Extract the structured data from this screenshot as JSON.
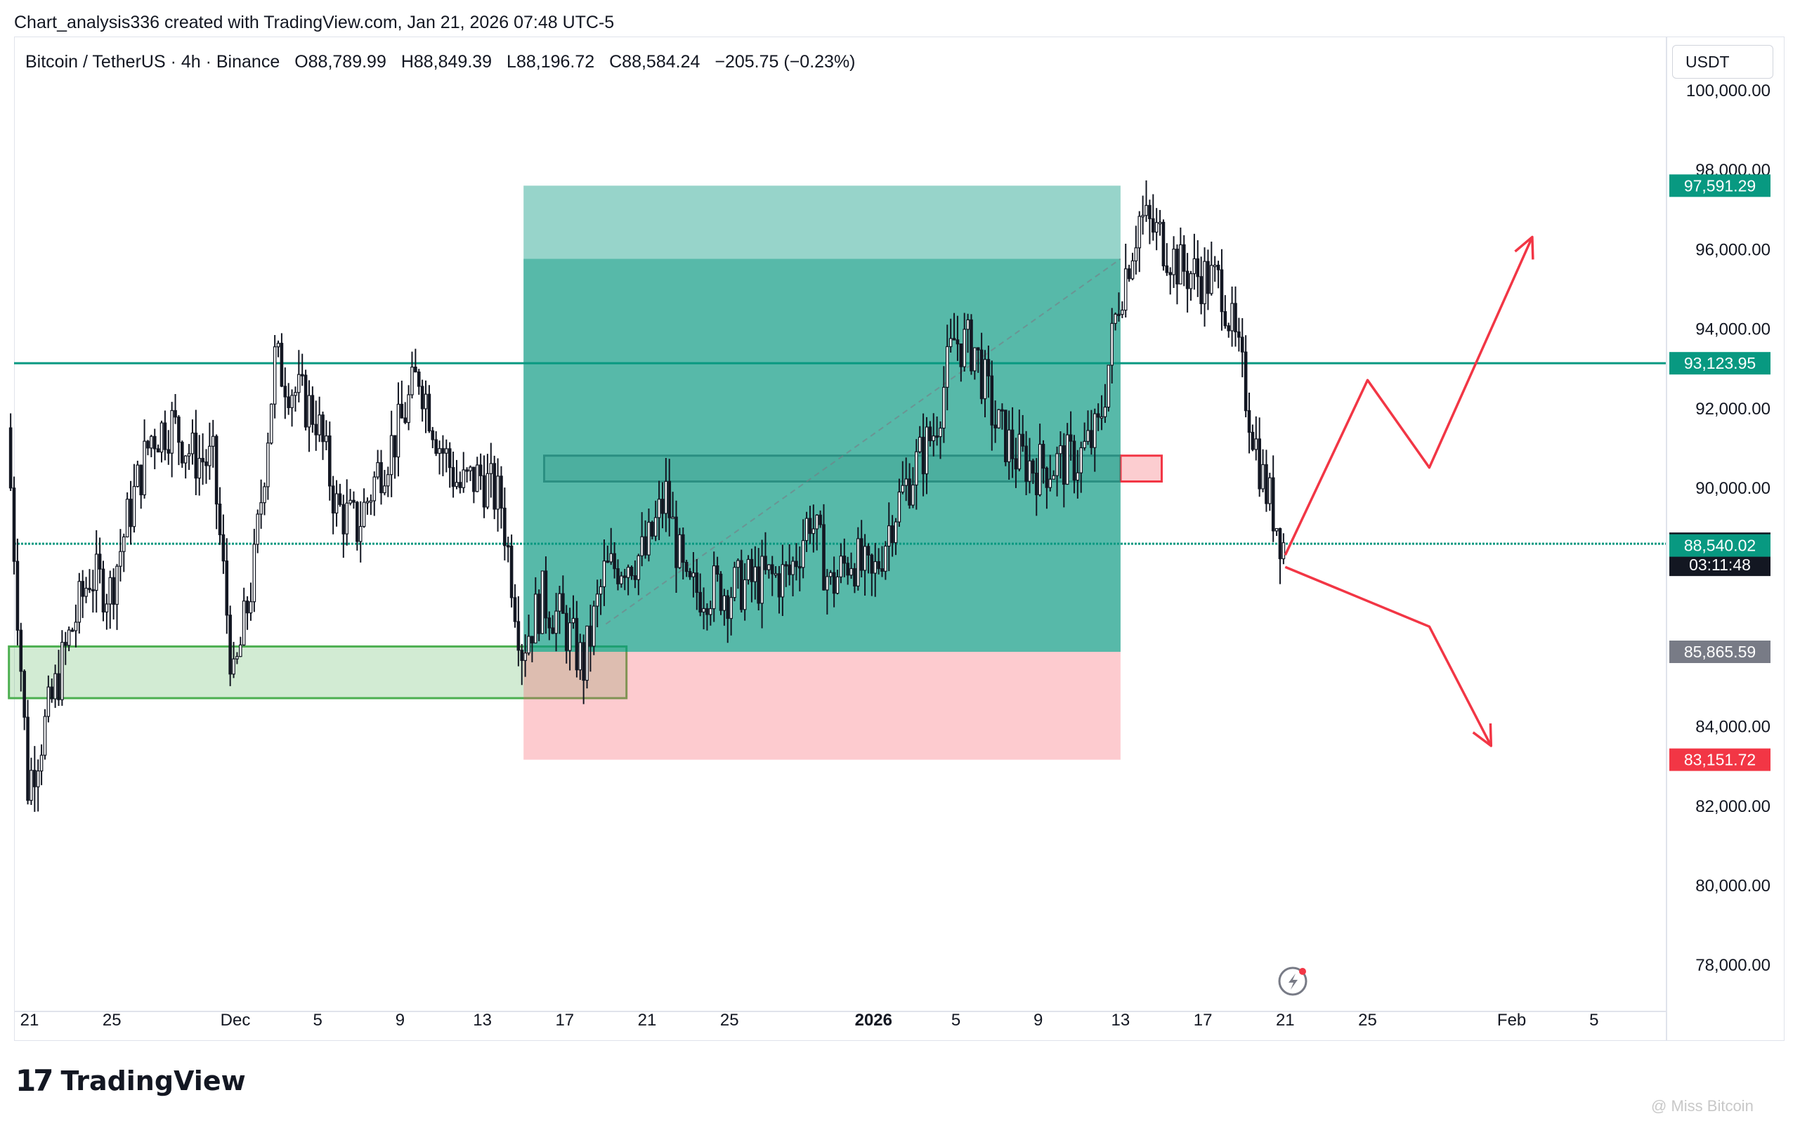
{
  "credit": "Chart_analysis336 created with TradingView.com, Jan 21, 2026 07:48 UTC-5",
  "legend": {
    "symbol": "Bitcoin / TetherUS · 4h · Binance",
    "open": "O88,789.99",
    "high": "H88,849.39",
    "low": "L88,196.72",
    "close": "C88,584.24",
    "change": "−205.75 (−0.23%)"
  },
  "currency": "USDT",
  "logo_text": "TradingView",
  "watermark": "@ Miss Bitcoin",
  "chart_data": {
    "type": "candlestick",
    "timeframe": "4h",
    "y_ticks": [
      "78,000.00",
      "80,000.00",
      "82,000.00",
      "84,000.00",
      "86,000.00",
      "88,000.00",
      "90,000.00",
      "92,000.00",
      "94,000.00",
      "96,000.00",
      "98,000.00",
      "100,000.00"
    ],
    "x_ticks": [
      {
        "label": "21",
        "date": "2025-11-21",
        "bold": false
      },
      {
        "label": "25",
        "date": "2025-11-25",
        "bold": false
      },
      {
        "label": "Dec",
        "date": "2025-12-01",
        "bold": false
      },
      {
        "label": "5",
        "date": "2025-12-05",
        "bold": false
      },
      {
        "label": "9",
        "date": "2025-12-09",
        "bold": false
      },
      {
        "label": "13",
        "date": "2025-12-13",
        "bold": false
      },
      {
        "label": "17",
        "date": "2025-12-17",
        "bold": false
      },
      {
        "label": "21",
        "date": "2025-12-21",
        "bold": false
      },
      {
        "label": "25",
        "date": "2025-12-25",
        "bold": false
      },
      {
        "label": "2026",
        "date": "2026-01-01",
        "bold": true
      },
      {
        "label": "5",
        "date": "2026-01-05",
        "bold": false
      },
      {
        "label": "9",
        "date": "2026-01-09",
        "bold": false
      },
      {
        "label": "13",
        "date": "2026-01-13",
        "bold": false
      },
      {
        "label": "17",
        "date": "2026-01-17",
        "bold": false
      },
      {
        "label": "21",
        "date": "2026-01-21",
        "bold": false
      },
      {
        "label": "25",
        "date": "2026-01-25",
        "bold": false
      },
      {
        "label": "Feb",
        "date": "2026-02-01",
        "bold": false
      },
      {
        "label": "5",
        "date": "2026-02-05",
        "bold": false
      }
    ],
    "path": [
      [
        "2025-11-20",
        91500
      ],
      [
        "2025-11-21",
        82500
      ],
      [
        "2025-11-22",
        84300
      ],
      [
        "2025-11-23",
        86200
      ],
      [
        "2025-11-24",
        87800
      ],
      [
        "2025-11-25",
        87400
      ],
      [
        "2025-11-26",
        89500
      ],
      [
        "2025-11-27",
        91300
      ],
      [
        "2025-11-28",
        91600
      ],
      [
        "2025-11-29",
        90800
      ],
      [
        "2025-11-30",
        90600
      ],
      [
        "2025-12-01",
        85000
      ],
      [
        "2025-12-02",
        88000
      ],
      [
        "2025-12-03",
        93200
      ],
      [
        "2025-12-04",
        92400
      ],
      [
        "2025-12-05",
        91800
      ],
      [
        "2025-12-06",
        89500
      ],
      [
        "2025-12-07",
        89000
      ],
      [
        "2025-12-08",
        90400
      ],
      [
        "2025-12-09",
        91400
      ],
      [
        "2025-12-10",
        92900
      ],
      [
        "2025-12-11",
        91100
      ],
      [
        "2025-12-12",
        90000
      ],
      [
        "2025-12-13",
        90300
      ],
      [
        "2025-12-14",
        89600
      ],
      [
        "2025-12-15",
        86000
      ],
      [
        "2025-12-16",
        87200
      ],
      [
        "2025-12-17",
        86600
      ],
      [
        "2025-12-18",
        85500
      ],
      [
        "2025-12-19",
        87800
      ],
      [
        "2025-12-20",
        88200
      ],
      [
        "2025-12-21",
        88300
      ],
      [
        "2025-12-22",
        89800
      ],
      [
        "2025-12-23",
        87300
      ],
      [
        "2025-12-24",
        87500
      ],
      [
        "2025-12-25",
        87400
      ],
      [
        "2025-12-26",
        87600
      ],
      [
        "2025-12-27",
        87700
      ],
      [
        "2025-12-28",
        87800
      ],
      [
        "2025-12-29",
        89300
      ],
      [
        "2025-12-30",
        87500
      ],
      [
        "2025-12-31",
        88300
      ],
      [
        "2026-01-01",
        87600
      ],
      [
        "2026-01-02",
        89300
      ],
      [
        "2026-01-03",
        90400
      ],
      [
        "2026-01-04",
        91400
      ],
      [
        "2026-01-05",
        93700
      ],
      [
        "2026-01-06",
        93500
      ],
      [
        "2026-01-07",
        91600
      ],
      [
        "2026-01-08",
        90800
      ],
      [
        "2026-01-09",
        90500
      ],
      [
        "2026-01-10",
        90600
      ],
      [
        "2026-01-11",
        90700
      ],
      [
        "2026-01-12",
        91400
      ],
      [
        "2026-01-13",
        94800
      ],
      [
        "2026-01-14",
        96800
      ],
      [
        "2026-01-15",
        96300
      ],
      [
        "2026-01-16",
        95500
      ],
      [
        "2026-01-17",
        95300
      ],
      [
        "2026-01-18",
        95100
      ],
      [
        "2026-01-19",
        92800
      ],
      [
        "2026-01-20",
        90200
      ],
      [
        "2026-01-21",
        88584
      ]
    ],
    "price_labels": [
      {
        "text": "97,591.29",
        "value": 97591.29,
        "color": "#089981"
      },
      {
        "text": "93,123.95",
        "value": 93123.95,
        "color": "#089981"
      },
      {
        "text": "88,584.24",
        "sub": "03:11:48",
        "value": 88584.24,
        "color": "#131722"
      },
      {
        "text": "88,540.02",
        "value": 88540.02,
        "color": "#089981"
      },
      {
        "text": "85,865.59",
        "value": 85865.59,
        "color": "#787b86"
      },
      {
        "text": "83,151.72",
        "value": 83151.72,
        "color": "#f23645"
      }
    ],
    "horizontal_lines": [
      {
        "value": 93123.95,
        "color": "#089981"
      },
      {
        "value": 88584.24,
        "color": "#089981"
      }
    ],
    "position": {
      "start": "2025-12-15",
      "end": "2026-01-13",
      "entry": 85865.59,
      "target": 97591.29,
      "stop": 83151.72,
      "fill_to": 95750,
      "profit_color": "#089981",
      "loss_color": "#f7525f"
    },
    "zones": [
      {
        "start": "2025-11-20",
        "end": "2025-12-20",
        "top": 86000,
        "bottom": 84700,
        "color": "#4caf50"
      },
      {
        "start": "2025-12-16",
        "end": "2026-01-13",
        "top": 90800,
        "bottom": 90150,
        "color": "#787b86"
      },
      {
        "start": "2026-01-13",
        "end": "2026-01-15",
        "top": 90800,
        "bottom": 90150,
        "color": "#f23645"
      }
    ],
    "projections": [
      {
        "points": [
          [
            "2026-01-21",
            88300
          ],
          [
            "2026-01-25",
            92700
          ],
          [
            "2026-01-28",
            90500
          ],
          [
            "2026-02-02",
            96300
          ]
        ],
        "color": "#f23645"
      },
      {
        "points": [
          [
            "2026-01-21",
            88000
          ],
          [
            "2026-01-28",
            86500
          ],
          [
            "2026-01-31",
            83500
          ]
        ],
        "color": "#f23645"
      }
    ]
  }
}
